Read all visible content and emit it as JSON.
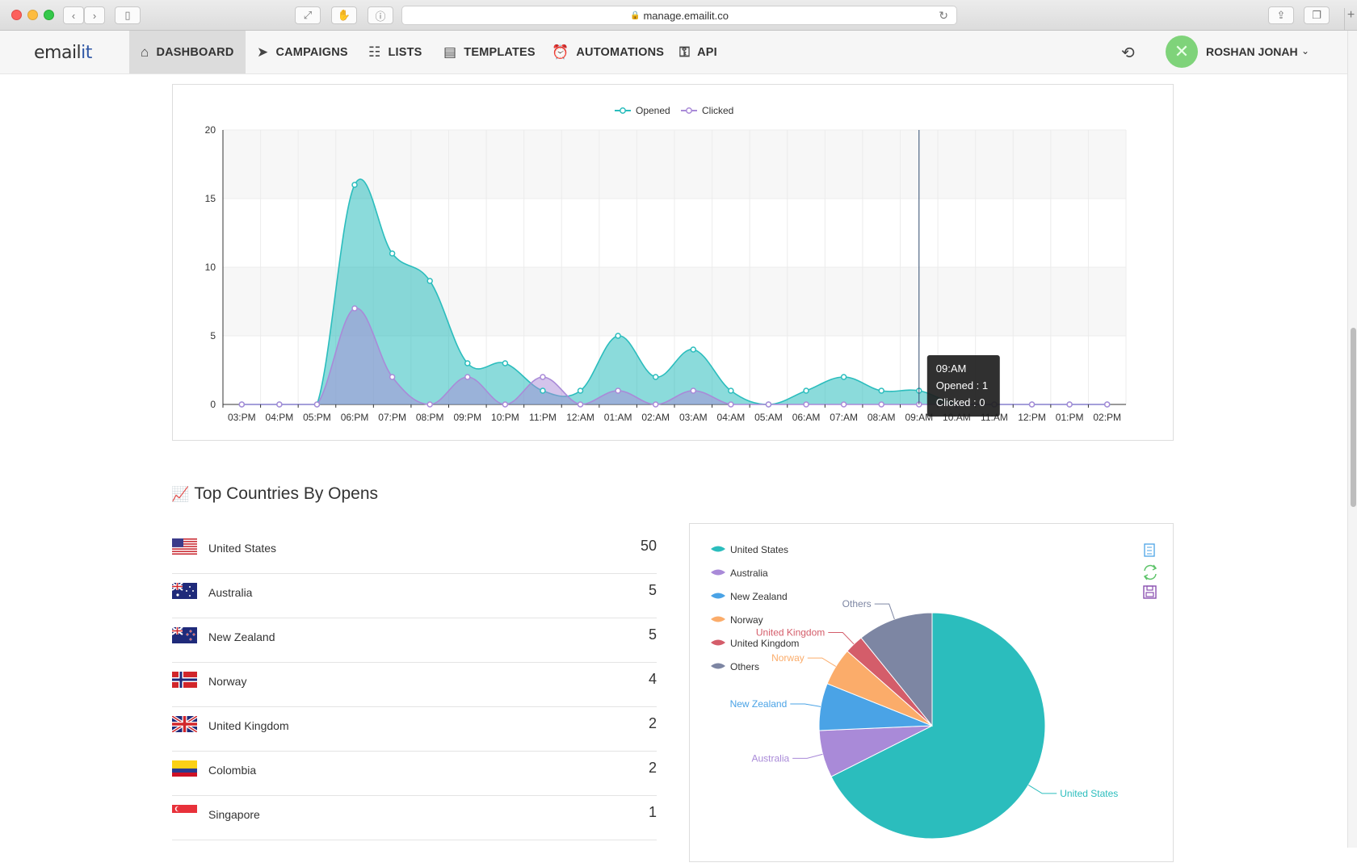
{
  "browser": {
    "url": "manage.emailit.co"
  },
  "nav": {
    "logo_prefix": "email",
    "logo_suffix": "it",
    "items": [
      {
        "label": "DASHBOARD",
        "icon": "home-icon",
        "glyph": "⌂"
      },
      {
        "label": "CAMPAIGNS",
        "icon": "paper-plane-icon",
        "glyph": "➤"
      },
      {
        "label": "LISTS",
        "icon": "address-book-icon",
        "glyph": "☷"
      },
      {
        "label": "TEMPLATES",
        "icon": "newspaper-icon",
        "glyph": "▤"
      },
      {
        "label": "AUTOMATIONS",
        "icon": "alarm-clock-icon",
        "glyph": "⏰"
      },
      {
        "label": "API",
        "icon": "key-icon",
        "glyph": "⚿"
      }
    ],
    "user": {
      "name": "ROSHAN JONAH"
    }
  },
  "line_chart": {
    "chart_data": {
      "type": "line",
      "legend": "top-center",
      "x": [
        "03:PM",
        "04:PM",
        "05:PM",
        "06:PM",
        "07:PM",
        "08:PM",
        "09:PM",
        "10:PM",
        "11:PM",
        "12:AM",
        "01:AM",
        "02:AM",
        "03:AM",
        "04:AM",
        "05:AM",
        "06:AM",
        "07:AM",
        "08:AM",
        "09:AM",
        "10:AM",
        "11:AM",
        "12:PM",
        "01:PM",
        "02:PM"
      ],
      "series": [
        {
          "name": "Opened",
          "color": "#2bbdbd",
          "values": [
            0,
            0,
            0,
            16,
            11,
            9,
            3,
            3,
            1,
            1,
            5,
            2,
            4,
            1,
            0,
            1,
            2,
            1,
            1,
            0,
            0,
            0,
            0,
            0
          ]
        },
        {
          "name": "Clicked",
          "color": "#a98ad8",
          "values": [
            0,
            0,
            0,
            7,
            2,
            0,
            2,
            0,
            2,
            0,
            1,
            0,
            1,
            0,
            0,
            0,
            0,
            0,
            0,
            0,
            0,
            0,
            0,
            0
          ]
        }
      ],
      "ylim": [
        0,
        20
      ],
      "yticks": [
        0,
        5,
        10,
        15,
        20
      ],
      "grid": true
    },
    "tooltip": {
      "title": "09:AM",
      "opened": "Opened : 1",
      "clicked": "Clicked : 0"
    }
  },
  "countries_section": {
    "title": "Top Countries By Opens",
    "rows": [
      {
        "name": "United States",
        "count": "50",
        "flag": "us"
      },
      {
        "name": "Australia",
        "count": "5",
        "flag": "au"
      },
      {
        "name": "New Zealand",
        "count": "5",
        "flag": "nz"
      },
      {
        "name": "Norway",
        "count": "4",
        "flag": "no"
      },
      {
        "name": "United Kingdom",
        "count": "2",
        "flag": "uk"
      },
      {
        "name": "Colombia",
        "count": "2",
        "flag": "co"
      },
      {
        "name": "Singapore",
        "count": "1",
        "flag": "sg"
      }
    ]
  },
  "pie_chart": {
    "chart_data": {
      "type": "pie",
      "legend": "top-left",
      "slices": [
        {
          "label": "United States",
          "value": 50,
          "color": "#2bbdbd"
        },
        {
          "label": "Australia",
          "value": 5,
          "color": "#a98ad8"
        },
        {
          "label": "New Zealand",
          "value": 5,
          "color": "#4aa3e6"
        },
        {
          "label": "Norway",
          "value": 4,
          "color": "#fbac6a"
        },
        {
          "label": "United Kingdom",
          "value": 2,
          "color": "#d45d6a"
        },
        {
          "label": "Others",
          "value": 8,
          "color": "#7d86a3"
        }
      ]
    },
    "toolbox": [
      {
        "name": "data-view-icon",
        "color": "#4aa3e6"
      },
      {
        "name": "restore-icon",
        "color": "#5ec46a"
      },
      {
        "name": "save-image-icon",
        "color": "#8a4fb0"
      }
    ]
  }
}
